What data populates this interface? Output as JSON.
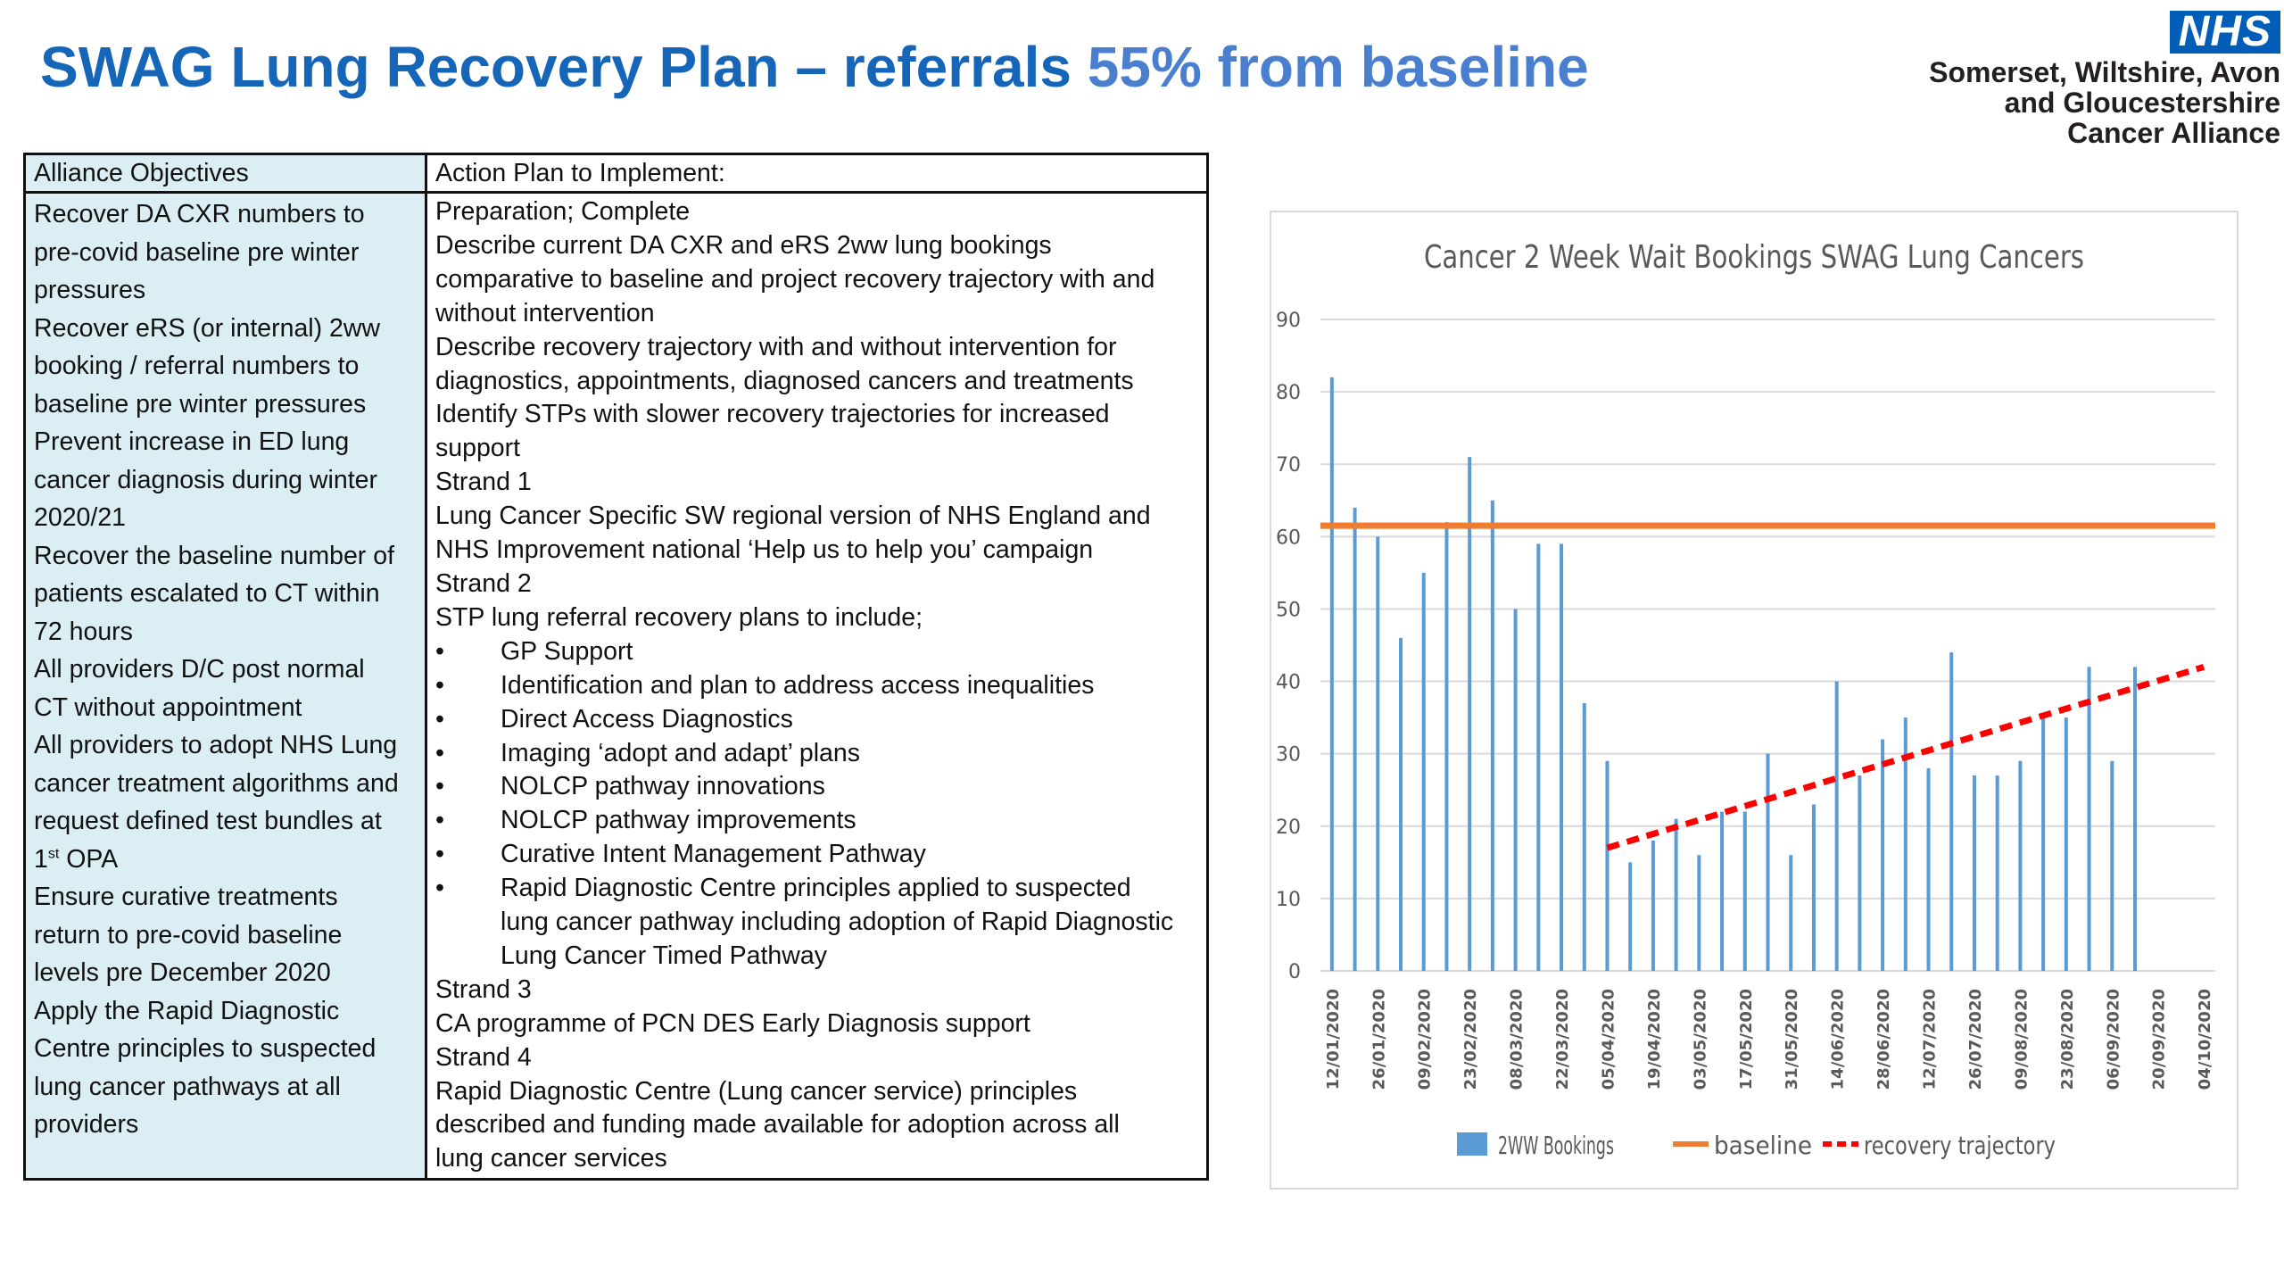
{
  "slide": {
    "title_main": "SWAG Lung Recovery Plan – referrals ",
    "title_highlight": "55% from baseline"
  },
  "logo": {
    "nhs_text": "NHS",
    "org_lines": [
      "Somerset, Wiltshire, Avon",
      "and Gloucestershire",
      "Cancer Alliance"
    ],
    "color": "#005eb8"
  },
  "table": {
    "header_left": "Alliance Objectives",
    "header_right": "Action Plan to Implement:",
    "objectives_lines": [
      "Recover DA CXR numbers to",
      "pre-covid baseline pre winter",
      "pressures",
      "Recover eRS (or internal) 2ww",
      "booking / referral numbers to",
      "baseline pre winter pressures",
      "Prevent increase in ED lung",
      "cancer diagnosis during winter",
      "2020/21",
      "Recover the baseline number of",
      "patients escalated to CT within",
      "72 hours",
      "All providers D/C post normal",
      "CT without appointment",
      "All providers to adopt NHS Lung",
      "cancer treatment algorithms and",
      "request defined test bundles at",
      "1st_OPA",
      "Ensure curative treatments",
      "return to  pre-covid baseline",
      "levels pre December 2020",
      "Apply the Rapid Diagnostic",
      "Centre principles to suspected",
      "lung cancer pathways at all",
      "providers"
    ],
    "opa_prefix": "1",
    "opa_sup": "st",
    "opa_suffix": " OPA",
    "actions": [
      {
        "text": "Preparation; Complete",
        "bullet": false
      },
      {
        "text": "Describe current DA CXR and eRS 2ww lung bookings",
        "bullet": false
      },
      {
        "text": "comparative to baseline and project recovery trajectory with and",
        "bullet": false
      },
      {
        "text": "without intervention",
        "bullet": false
      },
      {
        "text": "Describe recovery trajectory with and without intervention for",
        "bullet": false
      },
      {
        "text": "diagnostics, appointments, diagnosed cancers and treatments",
        "bullet": false
      },
      {
        "text": "Identify STPs with slower recovery trajectories for increased",
        "bullet": false
      },
      {
        "text": "support",
        "bullet": false
      },
      {
        "text": "Strand 1",
        "bullet": false
      },
      {
        "text": "Lung Cancer Specific SW regional version of NHS England and",
        "bullet": false
      },
      {
        "text": "NHS Improvement national ‘Help us to help you’ campaign",
        "bullet": false
      },
      {
        "text": "Strand 2",
        "bullet": false
      },
      {
        "text": "STP lung referral recovery plans to include;",
        "bullet": false
      },
      {
        "text": "GP Support",
        "bullet": true
      },
      {
        "text": "Identification and plan to address access inequalities",
        "bullet": true
      },
      {
        "text": "Direct Access Diagnostics",
        "bullet": true
      },
      {
        "text": "Imaging ‘adopt and adapt’ plans",
        "bullet": true
      },
      {
        "text": "NOLCP pathway innovations",
        "bullet": true
      },
      {
        "text": "NOLCP pathway improvements",
        "bullet": true
      },
      {
        "text": "Curative Intent Management Pathway",
        "bullet": true
      },
      {
        "text": "Rapid Diagnostic Centre principles applied to suspected",
        "bullet": true
      },
      {
        "text": "lung cancer pathway including adoption of Rapid Diagnostic",
        "bullet": "cont"
      },
      {
        "text": "Lung Cancer Timed Pathway",
        "bullet": "cont"
      },
      {
        "text": "Strand 3",
        "bullet": false
      },
      {
        "text": "CA programme of PCN DES Early Diagnosis support",
        "bullet": false
      },
      {
        "text": "Strand 4",
        "bullet": false
      },
      {
        "text": "Rapid Diagnostic Centre (Lung cancer service) principles",
        "bullet": false
      },
      {
        "text": "described and funding made available for adoption across all",
        "bullet": false
      },
      {
        "text": "lung cancer services",
        "bullet": false
      }
    ]
  },
  "chart_data": {
    "type": "bar",
    "title": "Cancer 2 Week Wait Bookings SWAG Lung Cancers",
    "ylim": [
      0,
      90
    ],
    "yticks": [
      0,
      10,
      20,
      30,
      40,
      50,
      60,
      70,
      80,
      90
    ],
    "grid": true,
    "legend_position": "bottom",
    "categories": [
      "12/01/2020",
      "19/01/2020",
      "26/01/2020",
      "02/02/2020",
      "09/02/2020",
      "16/02/2020",
      "23/02/2020",
      "01/03/2020",
      "08/03/2020",
      "15/03/2020",
      "22/03/2020",
      "29/03/2020",
      "05/04/2020",
      "12/04/2020",
      "19/04/2020",
      "26/04/2020",
      "03/05/2020",
      "10/05/2020",
      "17/05/2020",
      "24/05/2020",
      "31/05/2020",
      "07/06/2020",
      "14/06/2020",
      "21/06/2020",
      "28/06/2020",
      "05/07/2020",
      "12/07/2020",
      "19/07/2020",
      "26/07/2020",
      "02/08/2020",
      "09/08/2020",
      "16/08/2020",
      "23/08/2020",
      "30/08/2020",
      "06/09/2020",
      "13/09/2020",
      "20/09/2020",
      "27/09/2020",
      "04/10/2020"
    ],
    "tick_labels": [
      "12/01/2020",
      "26/01/2020",
      "09/02/2020",
      "23/02/2020",
      "08/03/2020",
      "22/03/2020",
      "05/04/2020",
      "19/04/2020",
      "03/05/2020",
      "17/05/2020",
      "31/05/2020",
      "14/06/2020",
      "28/06/2020",
      "12/07/2020",
      "26/07/2020",
      "09/08/2020",
      "23/08/2020",
      "06/09/2020",
      "20/09/2020",
      "04/10/2020"
    ],
    "series": [
      {
        "name": "2WW Bookings",
        "kind": "bar",
        "color": "#5b9bd5",
        "values": [
          82,
          64,
          60,
          46,
          55,
          62,
          71,
          65,
          50,
          59,
          59,
          37,
          29,
          15,
          18,
          21,
          16,
          22,
          22,
          30,
          16,
          23,
          40,
          27,
          32,
          35,
          28,
          44,
          27,
          27,
          29,
          35,
          35,
          42,
          29,
          42,
          null,
          null,
          null
        ]
      },
      {
        "name": "baseline",
        "kind": "line",
        "color": "#ed7d31",
        "value": 61.5
      },
      {
        "name": "recovery trajectory",
        "kind": "dashed-line",
        "color": "#ff0000",
        "x": [
          "05/04/2020",
          "04/10/2020"
        ],
        "values": [
          17,
          42
        ]
      }
    ]
  }
}
